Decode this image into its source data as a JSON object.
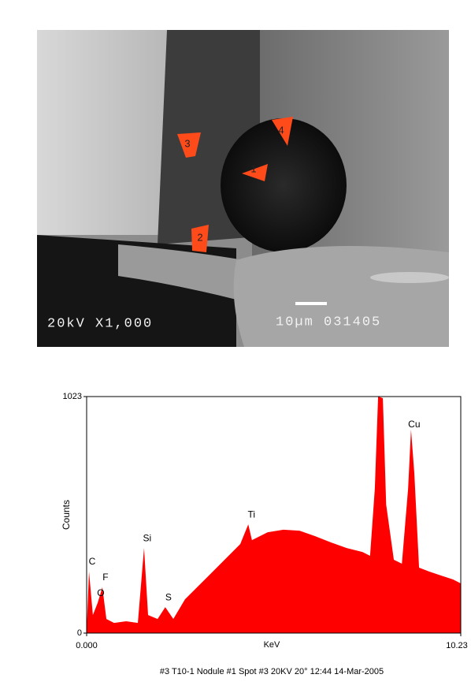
{
  "image": {
    "label_left": "20kV X1,000",
    "label_right": "10µm 031405",
    "markers": [
      "1",
      "2",
      "3",
      "4"
    ]
  },
  "chart_data": {
    "type": "area",
    "ylabel": "Counts",
    "xlabel": "KeV",
    "caption": "#3 T10-1 Nodule #1  Spot #3  20KV 20°  12:44  14-Mar-2005",
    "color": "#ff0000",
    "x": [
      0,
      0.065,
      0.17,
      0.3,
      0.43,
      0.54,
      0.75,
      1.08,
      1.4,
      1.57,
      1.68,
      1.94,
      2.15,
      2.37,
      2.69,
      3.02,
      3.45,
      3.88,
      4.2,
      4.42,
      4.52,
      4.95,
      5.38,
      5.82,
      6.25,
      6.68,
      7.11,
      7.54,
      7.75,
      7.88,
      7.97,
      8.1,
      8.19,
      8.4,
      8.62,
      8.79,
      8.87,
      8.96,
      9.09,
      9.37,
      9.69,
      10.02,
      10.23
    ],
    "values": [
      10,
      266,
      78,
      130,
      198,
      61,
      44,
      51,
      44,
      368,
      78,
      61,
      112,
      61,
      146,
      198,
      266,
      334,
      385,
      470,
      402,
      436,
      447,
      443,
      419,
      392,
      368,
      351,
      334,
      624,
      1023,
      1016,
      556,
      317,
      300,
      624,
      880,
      692,
      283,
      266,
      249,
      232,
      215
    ],
    "annotations": [
      {
        "label": "C",
        "x": 0.065,
        "y": 266
      },
      {
        "label": "O",
        "x": 0.3,
        "y": 130
      },
      {
        "label": "F",
        "x": 0.43,
        "y": 198
      },
      {
        "label": "Si",
        "x": 1.57,
        "y": 368
      },
      {
        "label": "S",
        "x": 2.15,
        "y": 112
      },
      {
        "label": "Ti",
        "x": 4.42,
        "y": 470
      },
      {
        "label": "Cu",
        "x": 8.87,
        "y": 880
      }
    ],
    "xlim": [
      0,
      10.23
    ],
    "ylim": [
      0,
      1023
    ],
    "xticks": [
      {
        "value": 0,
        "label": "0.000"
      },
      10.23
    ],
    "yticks": [
      0,
      1023
    ]
  }
}
